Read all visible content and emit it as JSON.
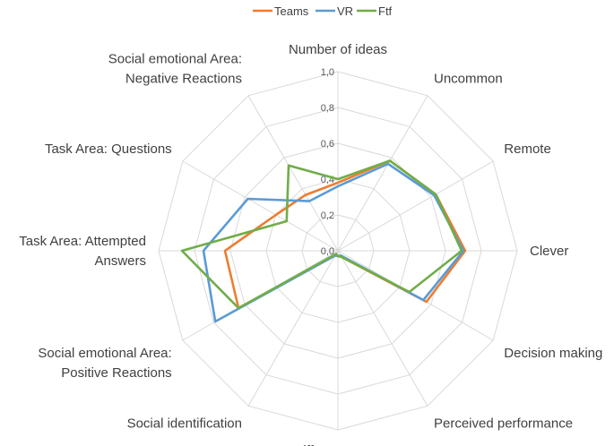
{
  "chart_data": {
    "type": "radar",
    "title": "",
    "categories": [
      [
        "Number of ideas"
      ],
      [
        "Uncommon"
      ],
      [
        "Remote"
      ],
      [
        "Clever"
      ],
      [
        "Decision making"
      ],
      [
        "Perceived performance"
      ],
      [
        "Different group"
      ],
      [
        "Social identification"
      ],
      [
        "Social emotional Area:",
        "Positive Reactions"
      ],
      [
        "Task Area: Attempted",
        "Answers"
      ],
      [
        "Task Area: Questions"
      ],
      [
        "Social emotional Area:",
        "Negative Reactions"
      ]
    ],
    "r_range": [
      0,
      1.0
    ],
    "ticks": [
      "0,0",
      "0,2",
      "0,4",
      "0,6",
      "0,8",
      "1,0"
    ],
    "grid": true,
    "legend_position": "top",
    "series": [
      {
        "name": "Teams",
        "color": "#ED7D31",
        "values": [
          0.38,
          0.58,
          0.63,
          0.71,
          0.57,
          0.04,
          0.03,
          0.03,
          0.64,
          0.63,
          0.4,
          0.36
        ]
      },
      {
        "name": "VR",
        "color": "#5B9BD5",
        "values": [
          0.36,
          0.56,
          0.62,
          0.7,
          0.55,
          0.03,
          0.03,
          0.03,
          0.79,
          0.75,
          0.58,
          0.32
        ]
      },
      {
        "name": "Ftf",
        "color": "#70AD47",
        "values": [
          0.4,
          0.58,
          0.63,
          0.69,
          0.46,
          0.04,
          0.03,
          0.02,
          0.64,
          0.87,
          0.33,
          0.55
        ]
      }
    ]
  }
}
